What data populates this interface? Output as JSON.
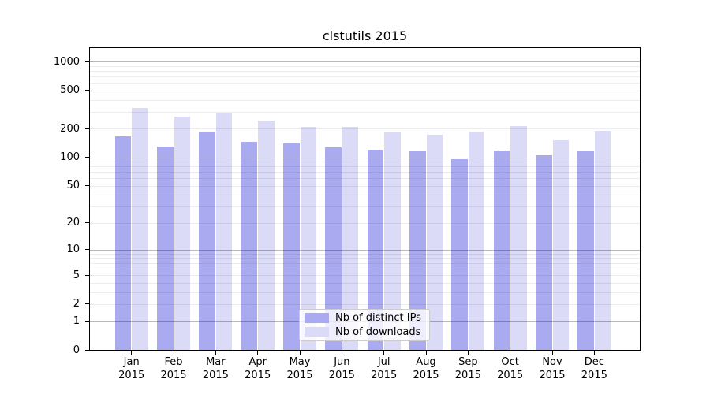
{
  "figure": {
    "title": "clstutils 2015"
  },
  "legend": {
    "items": [
      {
        "label": "Nb of distinct IPs",
        "color": "#aaaaf1"
      },
      {
        "label": "Nb of downloads",
        "color": "#dbdbf8"
      }
    ]
  },
  "chart_data": {
    "type": "bar",
    "title": "clstutils 2015",
    "categories": [
      "Jan 2015",
      "Feb 2015",
      "Mar 2015",
      "Apr 2015",
      "May 2015",
      "Jun 2015",
      "Jul 2015",
      "Aug 2015",
      "Sep 2015",
      "Oct 2015",
      "Nov 2015",
      "Dec 2015"
    ],
    "series": [
      {
        "name": "Nb of distinct IPs",
        "color": "#aaaaf1",
        "values": [
          168,
          131,
          187,
          147,
          140,
          129,
          121,
          116,
          97,
          119,
          105,
          117
        ]
      },
      {
        "name": "Nb of downloads",
        "color": "#dbdbf8",
        "values": [
          333,
          268,
          288,
          246,
          212,
          212,
          184,
          175,
          186,
          215,
          151,
          190
        ]
      }
    ],
    "xlabel": "",
    "ylabel": "",
    "yscale": "log1p",
    "ylim": [
      0,
      1420
    ],
    "y_ticks": [
      0,
      1,
      2,
      5,
      10,
      20,
      50,
      100,
      200,
      500,
      1000
    ],
    "grid": {
      "major": [
        1,
        10,
        100,
        1000
      ],
      "minor": [
        2,
        3,
        4,
        5,
        6,
        7,
        8,
        9,
        20,
        30,
        40,
        50,
        60,
        70,
        80,
        90,
        200,
        300,
        400,
        500,
        600,
        700,
        800,
        900
      ]
    },
    "legend_position": "lower center"
  }
}
